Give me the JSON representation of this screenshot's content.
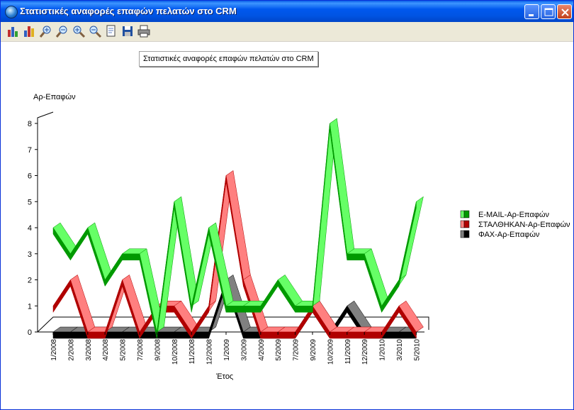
{
  "window": {
    "title": "Στατιστικές αναφορές επαφών πελατών στο CRM"
  },
  "toolbar": {
    "items": [
      "bar-chart",
      "bar-chart-3d",
      "zoom-in",
      "zoom-out",
      "zoom-in-alt",
      "zoom-out-alt",
      "page-setup",
      "save",
      "print"
    ]
  },
  "chart_data": {
    "type": "line",
    "title": "Στατιστικές αναφορές επαφών πελατών στο CRM",
    "xlabel": "Έτος",
    "ylabel": "Αρ-Επαφών",
    "ylim": [
      0,
      8
    ],
    "yticks": [
      "0",
      "1",
      "2",
      "3",
      "4",
      "5",
      "6",
      "7",
      "8"
    ],
    "categories": [
      "1/2008",
      "2/2008",
      "3/2008",
      "4/2008",
      "5/2008",
      "7/2008",
      "9/2008",
      "10/2008",
      "11/2008",
      "12/2008",
      "1/2009",
      "3/2009",
      "4/2009",
      "5/2009",
      "7/2009",
      "9/2009",
      "10/2009",
      "11/2009",
      "12/2009",
      "1/2010",
      "3/2010",
      "5/2010"
    ],
    "series": [
      {
        "name": "E-MAIL-Αρ-Επαφών",
        "color": "#009900",
        "top": "#66ff66",
        "values": [
          4,
          3,
          4,
          2,
          3,
          3,
          0,
          5,
          1,
          4,
          1,
          1,
          1,
          2,
          1,
          1,
          8,
          3,
          3,
          1,
          2,
          5
        ]
      },
      {
        "name": "ΣΤΑΛΘΗΚΑΝ-Αρ-Επαφών",
        "color": "#b00000",
        "top": "#ff7f7f",
        "values": [
          1,
          2,
          0,
          0,
          2,
          0,
          1,
          1,
          0,
          1,
          6,
          2,
          0,
          0,
          0,
          1,
          0,
          0,
          0,
          0,
          1,
          0
        ]
      },
      {
        "name": "ΦΑΧ-Αρ-Επαφών",
        "color": "#000000",
        "top": "#808080",
        "values": [
          0,
          0,
          0,
          0,
          0,
          0,
          0,
          0,
          0,
          0,
          2,
          0,
          0,
          0,
          0,
          1,
          0,
          1,
          0,
          0,
          0,
          0
        ]
      }
    ],
    "legend_position": "right",
    "grid": false
  }
}
